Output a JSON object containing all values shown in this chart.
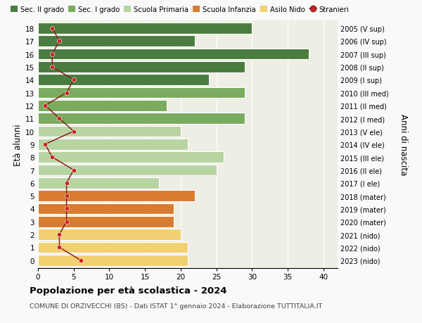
{
  "ages": [
    18,
    17,
    16,
    15,
    14,
    13,
    12,
    11,
    10,
    9,
    8,
    7,
    6,
    5,
    4,
    3,
    2,
    1,
    0
  ],
  "bar_values": [
    30,
    22,
    38,
    29,
    24,
    29,
    18,
    29,
    20,
    21,
    26,
    25,
    17,
    22,
    19,
    19,
    20,
    21,
    21
  ],
  "bar_colors": [
    "#4a7c3f",
    "#4a7c3f",
    "#4a7c3f",
    "#4a7c3f",
    "#4a7c3f",
    "#7aab5e",
    "#7aab5e",
    "#7aab5e",
    "#b8d4a0",
    "#b8d4a0",
    "#b8d4a0",
    "#b8d4a0",
    "#b8d4a0",
    "#d97b2e",
    "#d97b2e",
    "#d97b2e",
    "#f0d070",
    "#f0d070",
    "#f0d070"
  ],
  "stranieri_values": [
    2,
    3,
    2,
    2,
    5,
    4,
    1,
    3,
    5,
    1,
    2,
    5,
    4,
    4,
    4,
    4,
    3,
    3,
    6
  ],
  "right_labels": [
    "2005 (V sup)",
    "2006 (IV sup)",
    "2007 (III sup)",
    "2008 (II sup)",
    "2009 (I sup)",
    "2010 (III med)",
    "2011 (II med)",
    "2012 (I med)",
    "2013 (V ele)",
    "2014 (IV ele)",
    "2015 (III ele)",
    "2016 (II ele)",
    "2017 (I ele)",
    "2018 (mater)",
    "2019 (mater)",
    "2020 (mater)",
    "2021 (nido)",
    "2022 (nido)",
    "2023 (nido)"
  ],
  "legend_labels": [
    "Sec. II grado",
    "Sec. I grado",
    "Scuola Primaria",
    "Scuola Infanzia",
    "Asilo Nido",
    "Stranieri"
  ],
  "legend_colors": [
    "#4a7c3f",
    "#7aab5e",
    "#b8d4a0",
    "#d97b2e",
    "#f0d070",
    "#cc2222"
  ],
  "ylabel_left": "Età alunni",
  "ylabel_right": "Anni di nascita",
  "title": "Popolazione per età scolastica - 2024",
  "subtitle": "COMUNE DI ORZIVECCHI (BS) - Dati ISTAT 1° gennaio 2024 - Elaborazione TUTTITALIA.IT",
  "xlim": [
    0,
    42
  ],
  "background_color": "#f9f9f9",
  "bar_background": "#eeeee4",
  "stranieri_line_color": "#8b2020",
  "stranieri_dot_color": "#cc2222"
}
